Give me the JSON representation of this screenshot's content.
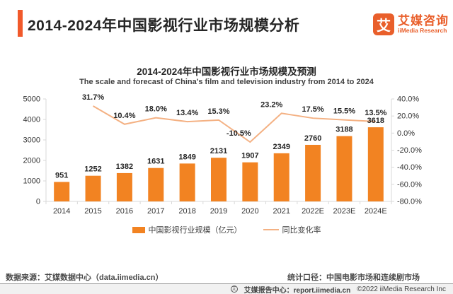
{
  "header": {
    "title": "2014-2024年中国影视行业市场规模分析",
    "logo": {
      "glyph": "艾",
      "name_cn": "艾媒咨询",
      "name_en": "iiMedia Research"
    }
  },
  "chart": {
    "title": "2014-2024年中国影视行业市场规模及预测",
    "subtitle": "The scale and forecast of China's film and television industry from 2014 to 2024"
  },
  "chart_data": {
    "type": "bar+line",
    "title": "2014-2024年中国影视行业市场规模及预测",
    "subtitle": "The scale and forecast of China's film and television industry from 2014 to 2024",
    "categories": [
      "2014",
      "2015",
      "2016",
      "2017",
      "2018",
      "2019",
      "2020",
      "2021",
      "2022E",
      "2023E",
      "2024E"
    ],
    "series": [
      {
        "name": "中国影视行业规模（亿元）",
        "type": "bar",
        "axis": "left",
        "color": "#F28322",
        "values": [
          951,
          1252,
          1382,
          1631,
          1849,
          2131,
          1907,
          2349,
          2760,
          3188,
          3618
        ],
        "labels": [
          "951",
          "1252",
          "1382",
          "1631",
          "1849",
          "2131",
          "1907",
          "2349",
          "2760",
          "3188",
          "3618"
        ]
      },
      {
        "name": "同比变化率",
        "type": "line",
        "axis": "right",
        "color": "#F4B183",
        "values": [
          null,
          31.7,
          10.4,
          18.0,
          13.4,
          15.3,
          -10.5,
          23.2,
          17.5,
          15.5,
          13.5
        ],
        "labels": [
          null,
          "31.7%",
          "10.4%",
          "18.0%",
          "13.4%",
          "15.3%",
          "-10.5%",
          "23.2%",
          "17.5%",
          "15.5%",
          "13.5%"
        ],
        "label_dx": [
          0,
          0,
          0,
          0,
          0,
          0,
          -16,
          -14,
          0,
          0,
          0
        ]
      }
    ],
    "left_axis": {
      "min": 0,
      "max": 5000,
      "ticks": [
        0,
        1000,
        2000,
        3000,
        4000,
        5000
      ],
      "tick_labels": [
        "0",
        "1000",
        "2000",
        "3000",
        "4000",
        "5000"
      ]
    },
    "right_axis": {
      "min": -80,
      "max": 40,
      "ticks": [
        40,
        20,
        0,
        -20,
        -40,
        -60,
        -80
      ],
      "tick_labels": [
        "40.0%",
        "20.0%",
        "0.0%",
        "-20.0%",
        "-40.0%",
        "-60.0%",
        "-80.0%"
      ]
    },
    "grid": false,
    "legend_position": "bottom"
  },
  "legend": {
    "bar_label": "中国影视行业规模（亿元）",
    "line_label": "同比变化率"
  },
  "footer": {
    "source": "数据来源：艾媒数据中心（data.iimedia.cn）",
    "scope": "统计口径：中国电影市场和连续剧市场",
    "report": "艾媒报告中心：report.iimedia.cn",
    "copyright": "©2022  iiMedia Research Inc",
    "mark_glyph": "艾"
  },
  "colors": {
    "accent_orange": "#F1592B",
    "logo_orange": "#E95F2B",
    "bar_orange": "#F28322",
    "line_salmon": "#F4B183",
    "axis_gray": "#D9D9D9",
    "text_dark": "#262626"
  }
}
